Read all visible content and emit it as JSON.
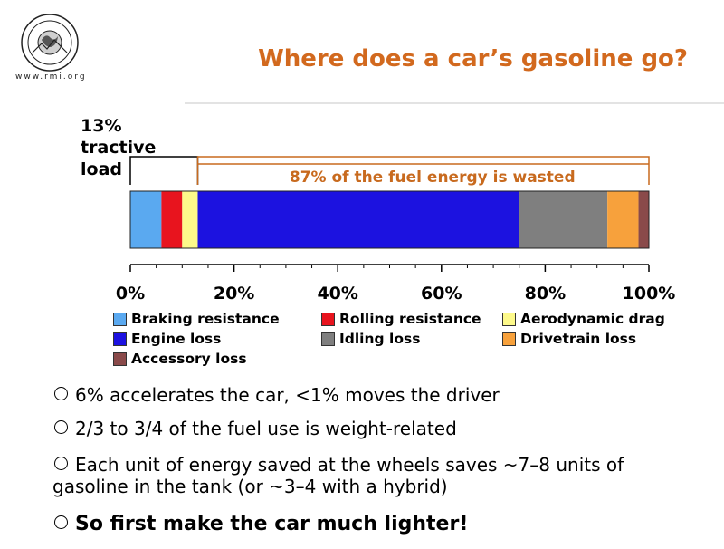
{
  "slide": {
    "title": "Where does a car’s gasoline go?",
    "url": "www.rmi.org",
    "logo_text": "ROCKY MOUNTAIN INSTITUTE"
  },
  "chart_data": {
    "type": "bar",
    "orientation": "horizontal-stacked",
    "categories": [
      "Braking resistance",
      "Rolling resistance",
      "Aerodynamic drag",
      "Engine loss",
      "Idling loss",
      "Drivetrain loss",
      "Accessory loss"
    ],
    "values": [
      6,
      4,
      3,
      62,
      17,
      6,
      2
    ],
    "colors": [
      "#5aa9f0",
      "#e8141e",
      "#fdf98a",
      "#1c12e0",
      "#7f7f7f",
      "#f7a13c",
      "#8a4a4a"
    ],
    "xlim": [
      0,
      100
    ],
    "ticks": [
      "0%",
      "20%",
      "40%",
      "60%",
      "80%",
      "100%"
    ],
    "tick_values": [
      0,
      20,
      40,
      60,
      80,
      100
    ],
    "annotations": {
      "tractive": "13% tractive load",
      "tractive_lines": [
        "13%",
        "tractive",
        "load"
      ],
      "tractive_range": [
        0,
        13
      ],
      "wasted": "87% of the fuel energy is wasted",
      "wasted_range": [
        13,
        100
      ]
    },
    "legend_placement": "bottom"
  },
  "bullets": [
    "6% accelerates the car, <1% moves the driver",
    "2/3 to 3/4 of the fuel use is weight-related",
    "Each unit of energy saved at the wheels saves ~7–8 units of",
    "gasoline in the tank (or ~3–4 with a hybrid)",
    "So first make the car much lighter!"
  ]
}
